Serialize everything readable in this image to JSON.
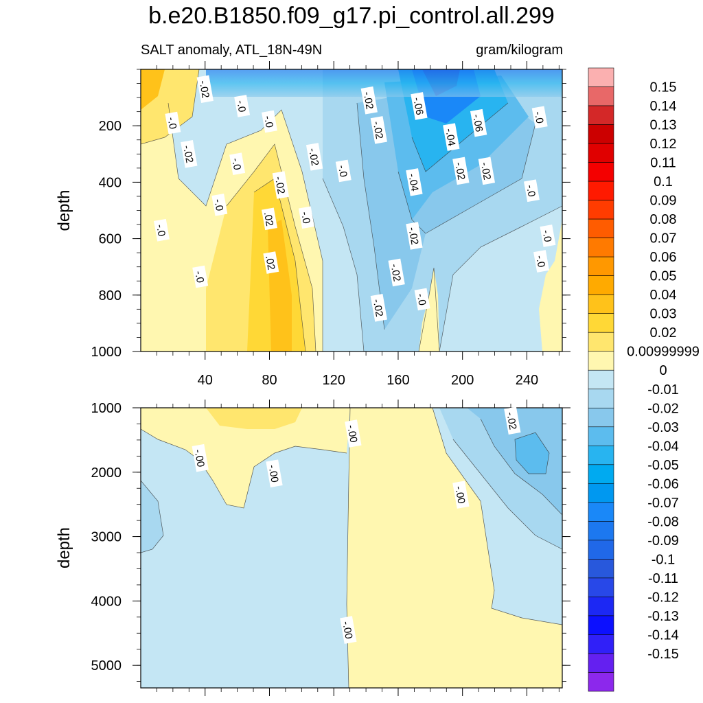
{
  "title": "b.e20.B1850.f09_g17.pi_control.all.299",
  "subtitle_left": "SALT anomaly, ATL_18N-49N",
  "subtitle_right": "gram/kilogram",
  "chart_data": [
    {
      "type": "heatmap",
      "panel": "upper",
      "xlabel": "",
      "ylabel": "depth",
      "xlim": [
        0,
        262
      ],
      "ylim": [
        1000,
        0
      ],
      "xticks": [
        40,
        80,
        120,
        160,
        200,
        240
      ],
      "yticks": [
        200,
        400,
        600,
        800,
        1000
      ],
      "contour_labels": [
        {
          "text": "-.02",
          "x": 40,
          "y": 70
        },
        {
          "text": "-.0",
          "x": 63,
          "y": 130
        },
        {
          "text": "-.0",
          "x": 20,
          "y": 190
        },
        {
          "text": "-.0",
          "x": 80,
          "y": 185
        },
        {
          "text": "-.02",
          "x": 142,
          "y": 110
        },
        {
          "text": "-.06",
          "x": 173,
          "y": 130
        },
        {
          "text": "-.06",
          "x": 210,
          "y": 190
        },
        {
          "text": "-.0",
          "x": 248,
          "y": 170
        },
        {
          "text": "-.02",
          "x": 148,
          "y": 215
        },
        {
          "text": "-.04",
          "x": 193,
          "y": 240
        },
        {
          "text": "-.02",
          "x": 108,
          "y": 310
        },
        {
          "text": "-.02",
          "x": 30,
          "y": 300
        },
        {
          "text": "-.0",
          "x": 60,
          "y": 335
        },
        {
          "text": "-.0",
          "x": 126,
          "y": 360
        },
        {
          "text": "-.02",
          "x": 199,
          "y": 360
        },
        {
          "text": "-.02",
          "x": 215,
          "y": 360
        },
        {
          "text": "-.04",
          "x": 170,
          "y": 400
        },
        {
          "text": "-.02",
          "x": 87,
          "y": 410
        },
        {
          "text": "-.0",
          "x": 243,
          "y": 430
        },
        {
          "text": "-.0",
          "x": 49,
          "y": 480
        },
        {
          "text": "-.0",
          "x": 103,
          "y": 525
        },
        {
          "text": ".02",
          "x": 80,
          "y": 530
        },
        {
          "text": "-.0",
          "x": 13,
          "y": 570
        },
        {
          "text": "-.02",
          "x": 170,
          "y": 590
        },
        {
          "text": "-.0",
          "x": 253,
          "y": 590
        },
        {
          "text": ".02",
          "x": 81,
          "y": 685
        },
        {
          "text": "-.0",
          "x": 249,
          "y": 680
        },
        {
          "text": "-.02",
          "x": 159,
          "y": 720
        },
        {
          "text": "-.0",
          "x": 37,
          "y": 735
        },
        {
          "text": "-.0",
          "x": 175,
          "y": 815
        },
        {
          "text": "-.02",
          "x": 148,
          "y": 845
        }
      ]
    },
    {
      "type": "heatmap",
      "panel": "lower",
      "xlabel": "",
      "ylabel": "depth",
      "xlim": [
        0,
        262
      ],
      "ylim": [
        5350,
        1000
      ],
      "yticks": [
        1000,
        2000,
        3000,
        4000,
        5000
      ],
      "contour_labels": [
        {
          "text": "-.02",
          "x": 231,
          "y": 1200
        },
        {
          "text": "-.00",
          "x": 132,
          "y": 1400
        },
        {
          "text": "-.00",
          "x": 37,
          "y": 1780
        },
        {
          "text": "-.00",
          "x": 83,
          "y": 2020
        },
        {
          "text": "-.00",
          "x": 199,
          "y": 2350
        },
        {
          "text": "-.00",
          "x": 129,
          "y": 4450
        }
      ]
    }
  ],
  "colorbar": {
    "labels": [
      "0.15",
      "0.14",
      "0.13",
      "0.12",
      "0.11",
      "0.1",
      "0.09",
      "0.08",
      "0.07",
      "0.06",
      "0.05",
      "0.04",
      "0.03",
      "0.02",
      "0.00999999",
      "0",
      "-0.01",
      "-0.02",
      "-0.03",
      "-0.04",
      "-0.05",
      "-0.06",
      "-0.07",
      "-0.08",
      "-0.09",
      "-0.1",
      "-0.11",
      "-0.12",
      "-0.13",
      "-0.14",
      "-0.15"
    ],
    "colors": [
      "#fbb0b0",
      "#e86868",
      "#d42828",
      "#cc0000",
      "#e00000",
      "#f40000",
      "#ff1a00",
      "#ff3c00",
      "#ff5c00",
      "#ff7a00",
      "#ff9800",
      "#ffaa00",
      "#ffc21a",
      "#ffd836",
      "#ffe66e",
      "#fff7b0",
      "#c4e6f4",
      "#a8d8f0",
      "#88c8ec",
      "#5cbcee",
      "#28b4f0",
      "#00aaf0",
      "#0098f0",
      "#1a88f8",
      "#1c78f0",
      "#2068e8",
      "#2858dc",
      "#2848e8",
      "#1c28f4",
      "#0c10ff",
      "#3020f8",
      "#6420f0",
      "#8c28ec"
    ]
  }
}
